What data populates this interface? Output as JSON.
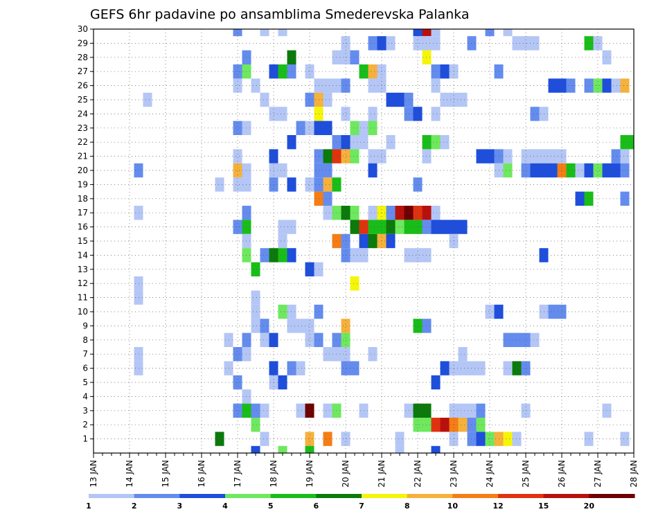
{
  "chart_data": {
    "type": "heatmap",
    "title": "GEFS 6hr padavine po ansamblima Smederevska Palanka",
    "xlabel": "",
    "ylabel": "",
    "x_ticks": [
      "13 JAN",
      "14 JAN",
      "15 JAN",
      "16 JAN",
      "17 JAN",
      "18 JAN",
      "19 JAN",
      "20 JAN",
      "21 JAN",
      "22 JAN",
      "23 JAN",
      "24 JAN",
      "25 JAN",
      "26 JAN",
      "27 JAN",
      "28 JAN"
    ],
    "x_range_days": [
      13,
      28
    ],
    "y_ticks": [
      1,
      2,
      3,
      4,
      5,
      6,
      7,
      8,
      9,
      10,
      11,
      12,
      13,
      14,
      15,
      16,
      17,
      18,
      19,
      20,
      21,
      22,
      23,
      24,
      25,
      26,
      27,
      28,
      29,
      30
    ],
    "y_range": [
      0,
      30
    ],
    "grid": true,
    "time_step_hours": 6,
    "colorbar": {
      "labels": [
        "1",
        "2",
        "3",
        "4",
        "5",
        "6",
        "7",
        "8",
        "10",
        "12",
        "15",
        "20"
      ],
      "colors": [
        "#b4c6f5",
        "#648cee",
        "#1e4edb",
        "#6ee85e",
        "#19bd19",
        "#0b7a0b",
        "#f5f50a",
        "#f5b13c",
        "#f57d14",
        "#e0320f",
        "#b8110d",
        "#6e0000"
      ]
    },
    "cells": [
      [
        17.0,
        30,
        1
      ],
      [
        17.75,
        30,
        0
      ],
      [
        18.25,
        30,
        0
      ],
      [
        22.0,
        30,
        2
      ],
      [
        22.25,
        30,
        10
      ],
      [
        22.5,
        30,
        0
      ],
      [
        24.0,
        30,
        1
      ],
      [
        24.5,
        30,
        0
      ],
      [
        20.0,
        29,
        0
      ],
      [
        20.75,
        29,
        1
      ],
      [
        21.0,
        29,
        2
      ],
      [
        21.25,
        29,
        0
      ],
      [
        22.0,
        29,
        0
      ],
      [
        22.25,
        29,
        0
      ],
      [
        22.5,
        29,
        0
      ],
      [
        23.5,
        29,
        1
      ],
      [
        24.75,
        29,
        0
      ],
      [
        25.0,
        29,
        0
      ],
      [
        25.25,
        29,
        0
      ],
      [
        26.75,
        29,
        4
      ],
      [
        27.0,
        29,
        0
      ],
      [
        17.25,
        28,
        1
      ],
      [
        18.5,
        28,
        5
      ],
      [
        19.75,
        28,
        0
      ],
      [
        20.0,
        28,
        0
      ],
      [
        20.25,
        28,
        1
      ],
      [
        22.25,
        28,
        6
      ],
      [
        27.25,
        28,
        0
      ],
      [
        17.0,
        27,
        1
      ],
      [
        17.25,
        27,
        3
      ],
      [
        18.0,
        27,
        2
      ],
      [
        18.25,
        27,
        4
      ],
      [
        18.5,
        27,
        1
      ],
      [
        19.0,
        27,
        0
      ],
      [
        20.5,
        27,
        4
      ],
      [
        20.75,
        27,
        7
      ],
      [
        21.0,
        27,
        0
      ],
      [
        22.5,
        27,
        1
      ],
      [
        22.75,
        27,
        2
      ],
      [
        23.0,
        27,
        0
      ],
      [
        24.25,
        27,
        1
      ],
      [
        17.0,
        26,
        0
      ],
      [
        17.5,
        26,
        0
      ],
      [
        19.25,
        26,
        0
      ],
      [
        19.5,
        26,
        0
      ],
      [
        19.75,
        26,
        0
      ],
      [
        20.0,
        26,
        1
      ],
      [
        20.75,
        26,
        0
      ],
      [
        21.0,
        26,
        0
      ],
      [
        22.5,
        26,
        0
      ],
      [
        25.75,
        26,
        2
      ],
      [
        26.0,
        26,
        2
      ],
      [
        26.25,
        26,
        1
      ],
      [
        26.75,
        26,
        1
      ],
      [
        27.0,
        26,
        3
      ],
      [
        27.25,
        26,
        2
      ],
      [
        27.5,
        26,
        0
      ],
      [
        27.75,
        26,
        7
      ],
      [
        14.5,
        25,
        0
      ],
      [
        17.75,
        25,
        0
      ],
      [
        19.0,
        25,
        1
      ],
      [
        19.25,
        25,
        7
      ],
      [
        19.5,
        25,
        0
      ],
      [
        21.25,
        25,
        2
      ],
      [
        21.5,
        25,
        2
      ],
      [
        21.75,
        25,
        1
      ],
      [
        22.75,
        25,
        0
      ],
      [
        23.0,
        25,
        0
      ],
      [
        23.25,
        25,
        0
      ],
      [
        18.0,
        24,
        0
      ],
      [
        18.25,
        24,
        0
      ],
      [
        19.25,
        24,
        6
      ],
      [
        20.0,
        24,
        0
      ],
      [
        20.75,
        24,
        0
      ],
      [
        21.75,
        24,
        1
      ],
      [
        22.0,
        24,
        2
      ],
      [
        22.5,
        24,
        0
      ],
      [
        25.25,
        24,
        1
      ],
      [
        25.5,
        24,
        0
      ],
      [
        17.0,
        23,
        1
      ],
      [
        17.25,
        23,
        0
      ],
      [
        18.75,
        23,
        1
      ],
      [
        19.0,
        23,
        0
      ],
      [
        19.25,
        23,
        2
      ],
      [
        19.5,
        23,
        2
      ],
      [
        20.25,
        23,
        3
      ],
      [
        20.5,
        23,
        0
      ],
      [
        20.75,
        23,
        3
      ],
      [
        18.5,
        22,
        2
      ],
      [
        19.75,
        22,
        1
      ],
      [
        20.0,
        22,
        2
      ],
      [
        20.25,
        22,
        0
      ],
      [
        20.5,
        22,
        0
      ],
      [
        21.25,
        22,
        0
      ],
      [
        22.25,
        22,
        4
      ],
      [
        22.5,
        22,
        3
      ],
      [
        22.75,
        22,
        0
      ],
      [
        27.75,
        22,
        4
      ],
      [
        28.0,
        22,
        4
      ],
      [
        17.0,
        21,
        0
      ],
      [
        18.0,
        21,
        2
      ],
      [
        19.25,
        21,
        1
      ],
      [
        19.5,
        21,
        5
      ],
      [
        19.75,
        21,
        9
      ],
      [
        20.0,
        21,
        7
      ],
      [
        20.25,
        21,
        3
      ],
      [
        20.75,
        21,
        0
      ],
      [
        21.0,
        21,
        0
      ],
      [
        22.25,
        21,
        0
      ],
      [
        23.75,
        21,
        2
      ],
      [
        24.0,
        21,
        2
      ],
      [
        24.25,
        21,
        1
      ],
      [
        24.5,
        21,
        0
      ],
      [
        25.0,
        21,
        0
      ],
      [
        25.25,
        21,
        0
      ],
      [
        25.5,
        21,
        0
      ],
      [
        25.75,
        21,
        0
      ],
      [
        26.0,
        21,
        0
      ],
      [
        27.5,
        21,
        1
      ],
      [
        27.75,
        21,
        0
      ],
      [
        14.25,
        20,
        1
      ],
      [
        17.0,
        20,
        7
      ],
      [
        17.25,
        20,
        0
      ],
      [
        18.0,
        20,
        0
      ],
      [
        18.25,
        20,
        0
      ],
      [
        19.25,
        20,
        1
      ],
      [
        19.5,
        20,
        1
      ],
      [
        20.75,
        20,
        2
      ],
      [
        24.25,
        20,
        0
      ],
      [
        24.5,
        20,
        3
      ],
      [
        25.0,
        20,
        1
      ],
      [
        25.25,
        20,
        2
      ],
      [
        25.5,
        20,
        2
      ],
      [
        25.75,
        20,
        2
      ],
      [
        26.0,
        20,
        8
      ],
      [
        26.25,
        20,
        4
      ],
      [
        26.5,
        20,
        0
      ],
      [
        26.75,
        20,
        2
      ],
      [
        27.0,
        20,
        3
      ],
      [
        27.25,
        20,
        2
      ],
      [
        27.5,
        20,
        2
      ],
      [
        27.75,
        20,
        1
      ],
      [
        16.5,
        19,
        0
      ],
      [
        17.0,
        19,
        0
      ],
      [
        17.25,
        19,
        0
      ],
      [
        18.0,
        19,
        1
      ],
      [
        18.5,
        19,
        2
      ],
      [
        19.0,
        19,
        0
      ],
      [
        19.25,
        19,
        1
      ],
      [
        19.5,
        19,
        7
      ],
      [
        19.75,
        19,
        4
      ],
      [
        22.0,
        19,
        1
      ],
      [
        19.25,
        18,
        8
      ],
      [
        19.5,
        18,
        1
      ],
      [
        26.5,
        18,
        2
      ],
      [
        26.75,
        18,
        4
      ],
      [
        27.75,
        18,
        1
      ],
      [
        14.25,
        17,
        0
      ],
      [
        17.25,
        17,
        1
      ],
      [
        19.5,
        17,
        0
      ],
      [
        19.75,
        17,
        3
      ],
      [
        20.0,
        17,
        5
      ],
      [
        20.25,
        17,
        3
      ],
      [
        20.75,
        17,
        0
      ],
      [
        21.0,
        17,
        6
      ],
      [
        21.25,
        17,
        1
      ],
      [
        21.5,
        17,
        10
      ],
      [
        21.75,
        17,
        11
      ],
      [
        22.0,
        17,
        9
      ],
      [
        22.25,
        17,
        10
      ],
      [
        22.5,
        17,
        0
      ],
      [
        17.0,
        16,
        1
      ],
      [
        17.25,
        16,
        4
      ],
      [
        18.25,
        16,
        0
      ],
      [
        18.5,
        16,
        0
      ],
      [
        20.25,
        16,
        5
      ],
      [
        20.5,
        16,
        9
      ],
      [
        20.75,
        16,
        4
      ],
      [
        21.0,
        16,
        4
      ],
      [
        21.25,
        16,
        5
      ],
      [
        21.5,
        16,
        3
      ],
      [
        21.75,
        16,
        4
      ],
      [
        22.0,
        16,
        4
      ],
      [
        22.25,
        16,
        1
      ],
      [
        22.5,
        16,
        2
      ],
      [
        22.75,
        16,
        2
      ],
      [
        23.0,
        16,
        2
      ],
      [
        23.25,
        16,
        2
      ],
      [
        17.25,
        15,
        0
      ],
      [
        18.25,
        15,
        0
      ],
      [
        19.75,
        15,
        8
      ],
      [
        20.0,
        15,
        1
      ],
      [
        20.5,
        15,
        2
      ],
      [
        20.75,
        15,
        5
      ],
      [
        21.0,
        15,
        7
      ],
      [
        21.25,
        15,
        2
      ],
      [
        23.0,
        15,
        0
      ],
      [
        17.25,
        14,
        3
      ],
      [
        17.75,
        14,
        1
      ],
      [
        18.0,
        14,
        5
      ],
      [
        18.25,
        14,
        4
      ],
      [
        18.5,
        14,
        2
      ],
      [
        20.0,
        14,
        1
      ],
      [
        20.25,
        14,
        0
      ],
      [
        20.5,
        14,
        0
      ],
      [
        21.75,
        14,
        0
      ],
      [
        22.0,
        14,
        0
      ],
      [
        22.25,
        14,
        0
      ],
      [
        25.5,
        14,
        2
      ],
      [
        17.5,
        13,
        4
      ],
      [
        19.0,
        13,
        2
      ],
      [
        19.25,
        13,
        0
      ],
      [
        14.25,
        12,
        0
      ],
      [
        20.25,
        12,
        6
      ],
      [
        14.25,
        11,
        0
      ],
      [
        17.5,
        11,
        0
      ],
      [
        17.5,
        10,
        0
      ],
      [
        18.25,
        10,
        3
      ],
      [
        18.5,
        10,
        0
      ],
      [
        19.25,
        10,
        1
      ],
      [
        24.0,
        10,
        0
      ],
      [
        24.25,
        10,
        2
      ],
      [
        25.5,
        10,
        0
      ],
      [
        25.75,
        10,
        1
      ],
      [
        26.0,
        10,
        1
      ],
      [
        17.5,
        9,
        0
      ],
      [
        17.75,
        9,
        1
      ],
      [
        18.5,
        9,
        0
      ],
      [
        18.75,
        9,
        0
      ],
      [
        19.0,
        9,
        0
      ],
      [
        20.0,
        9,
        7
      ],
      [
        22.0,
        9,
        4
      ],
      [
        22.25,
        9,
        1
      ],
      [
        16.75,
        8,
        0
      ],
      [
        17.25,
        8,
        1
      ],
      [
        17.75,
        8,
        0
      ],
      [
        18.0,
        8,
        2
      ],
      [
        19.0,
        8,
        0
      ],
      [
        19.25,
        8,
        1
      ],
      [
        19.75,
        8,
        1
      ],
      [
        20.0,
        8,
        3
      ],
      [
        24.5,
        8,
        1
      ],
      [
        24.75,
        8,
        1
      ],
      [
        25.0,
        8,
        1
      ],
      [
        25.25,
        8,
        0
      ],
      [
        14.25,
        7,
        0
      ],
      [
        17.0,
        7,
        1
      ],
      [
        17.25,
        7,
        0
      ],
      [
        19.5,
        7,
        0
      ],
      [
        19.75,
        7,
        0
      ],
      [
        20.0,
        7,
        0
      ],
      [
        20.75,
        7,
        0
      ],
      [
        23.25,
        7,
        0
      ],
      [
        14.25,
        6,
        0
      ],
      [
        16.75,
        6,
        0
      ],
      [
        18.0,
        6,
        2
      ],
      [
        18.5,
        6,
        1
      ],
      [
        18.75,
        6,
        0
      ],
      [
        20.0,
        6,
        1
      ],
      [
        20.25,
        6,
        1
      ],
      [
        22.75,
        6,
        2
      ],
      [
        23.0,
        6,
        0
      ],
      [
        23.25,
        6,
        0
      ],
      [
        23.5,
        6,
        0
      ],
      [
        23.75,
        6,
        0
      ],
      [
        24.5,
        6,
        0
      ],
      [
        24.75,
        6,
        5
      ],
      [
        25.0,
        6,
        1
      ],
      [
        17.0,
        5,
        1
      ],
      [
        18.0,
        5,
        0
      ],
      [
        18.25,
        5,
        2
      ],
      [
        22.5,
        5,
        2
      ],
      [
        17.25,
        4,
        0
      ],
      [
        17.0,
        3,
        1
      ],
      [
        17.25,
        3,
        4
      ],
      [
        17.5,
        3,
        1
      ],
      [
        17.75,
        3,
        0
      ],
      [
        18.75,
        3,
        0
      ],
      [
        19.0,
        3,
        11
      ],
      [
        19.5,
        3,
        0
      ],
      [
        19.75,
        3,
        3
      ],
      [
        20.5,
        3,
        0
      ],
      [
        21.75,
        3,
        0
      ],
      [
        22.0,
        3,
        5
      ],
      [
        22.25,
        3,
        5
      ],
      [
        23.0,
        3,
        0
      ],
      [
        23.25,
        3,
        0
      ],
      [
        23.5,
        3,
        0
      ],
      [
        23.75,
        3,
        1
      ],
      [
        25.0,
        3,
        0
      ],
      [
        27.25,
        3,
        0
      ],
      [
        17.5,
        2,
        3
      ],
      [
        22.0,
        2,
        3
      ],
      [
        22.25,
        2,
        3
      ],
      [
        22.5,
        2,
        9
      ],
      [
        22.75,
        2,
        10
      ],
      [
        23.0,
        2,
        8
      ],
      [
        23.25,
        2,
        7
      ],
      [
        23.5,
        2,
        1
      ],
      [
        23.75,
        2,
        3
      ],
      [
        16.5,
        1,
        5
      ],
      [
        17.75,
        1,
        0
      ],
      [
        19.0,
        1,
        7
      ],
      [
        19.5,
        1,
        8
      ],
      [
        20.0,
        1,
        0
      ],
      [
        21.5,
        1,
        0
      ],
      [
        23.0,
        1,
        0
      ],
      [
        23.5,
        1,
        1
      ],
      [
        23.75,
        1,
        2
      ],
      [
        24.0,
        1,
        3
      ],
      [
        24.25,
        1,
        7
      ],
      [
        24.5,
        1,
        6
      ],
      [
        24.75,
        1,
        0
      ],
      [
        26.75,
        1,
        0
      ],
      [
        27.75,
        1,
        0
      ],
      [
        17.5,
        0,
        2
      ],
      [
        18.25,
        0,
        3
      ],
      [
        19.0,
        0,
        4
      ],
      [
        21.5,
        0,
        0
      ],
      [
        22.5,
        0,
        2
      ]
    ]
  }
}
